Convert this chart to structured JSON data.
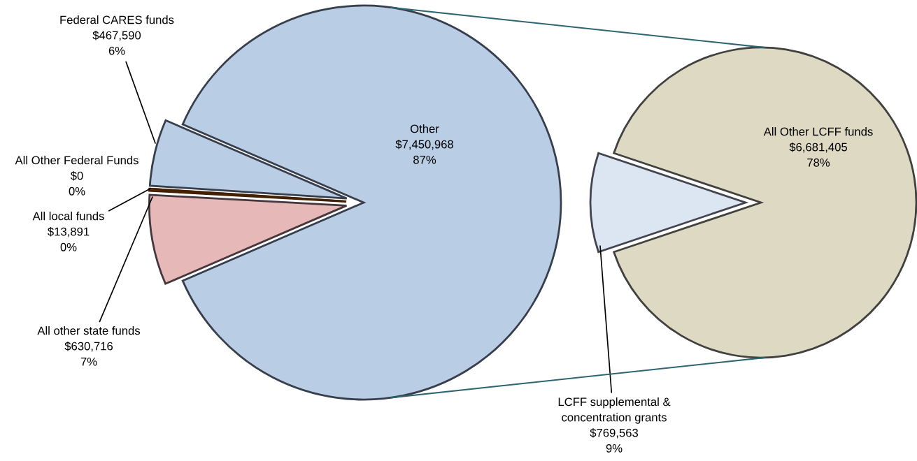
{
  "chart_data": [
    {
      "type": "pie",
      "categories": [
        "Federal CARES funds",
        "All Other Federal Funds",
        "All local funds",
        "All other state funds",
        "Other"
      ],
      "values": [
        467590,
        0,
        13891,
        630716,
        7450968
      ],
      "colors": [
        "#b9cde5",
        "#f79646",
        "#e46c0a",
        "#e6b9b8",
        "#b9cde5"
      ],
      "value_labels": [
        "$467,590\n6%",
        "$0\n0%",
        "$13,891\n0%",
        "$630,716\n7%",
        "$7,450,968\n87%"
      ],
      "legend": false
    },
    {
      "type": "pie",
      "categories": [
        "All Other LCFF funds",
        "LCFF supplemental & concentration grants"
      ],
      "values": [
        6681405,
        769563
      ],
      "colors": [
        "#ddd9c3",
        "#dce6f2"
      ],
      "value_labels": [
        "$6,681,405\n78%",
        "$769,563\n9%"
      ],
      "legend": false
    }
  ]
}
